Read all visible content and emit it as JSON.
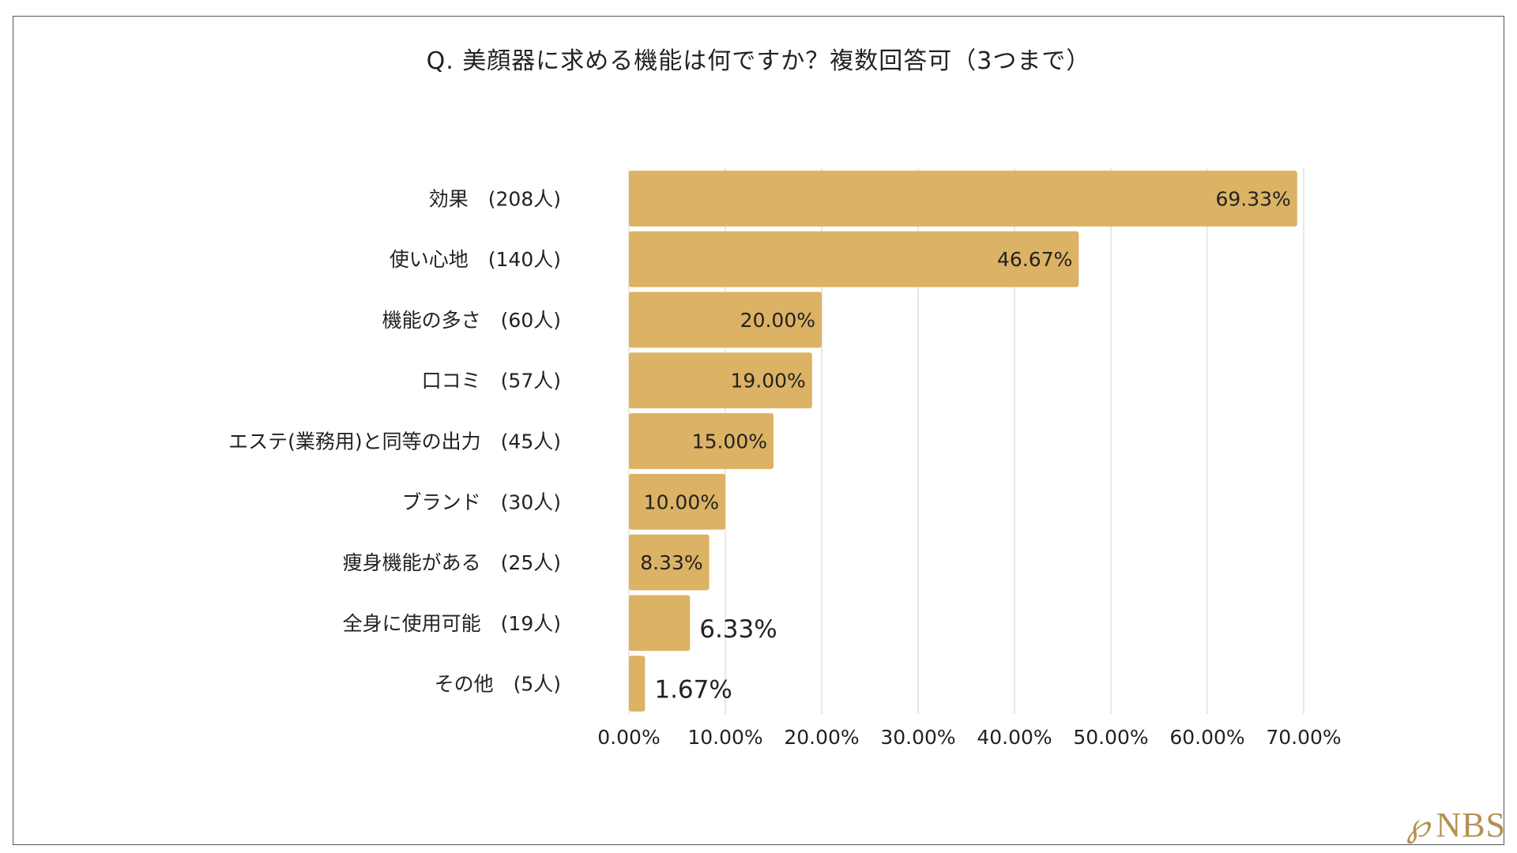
{
  "title": "Q.  美顔器に求める機能は何ですか？複数回答可（3つまで）",
  "logo": {
    "monogram": "℘",
    "brand": "NBS"
  },
  "colors": {
    "bar": "#dcb264",
    "grid": "#d9d9d9",
    "text": "#222222",
    "logo": "#b39150"
  },
  "chart_data": {
    "type": "bar",
    "orientation": "horizontal",
    "title": "Q.  美顔器に求める機能は何ですか？複数回答可（3つまで）",
    "categories": [
      "効果　(208人)",
      "使い心地　(140人)",
      "機能の多さ　(60人)",
      "口コミ　(57人)",
      "エステ(業務用)と同等の出力　(45人)",
      "ブランド　(30人)",
      "痩身機能がある　(25人)",
      "全身に使用可能　(19人)",
      "その他　(5人)"
    ],
    "values": [
      69.33,
      46.67,
      20.0,
      19.0,
      15.0,
      10.0,
      8.33,
      6.33,
      1.67
    ],
    "value_labels": [
      "69.33%",
      "46.67%",
      "20.00%",
      "19.00%",
      "15.00%",
      "10.00%",
      "8.33%",
      "6.33%",
      "1.67%"
    ],
    "xlim": [
      0,
      70
    ],
    "xticks": [
      "0.00%",
      "10.00%",
      "20.00%",
      "30.00%",
      "40.00%",
      "50.00%",
      "60.00%",
      "70.00%"
    ],
    "xlabel": "",
    "ylabel": "",
    "grid": true,
    "legend": "none"
  }
}
